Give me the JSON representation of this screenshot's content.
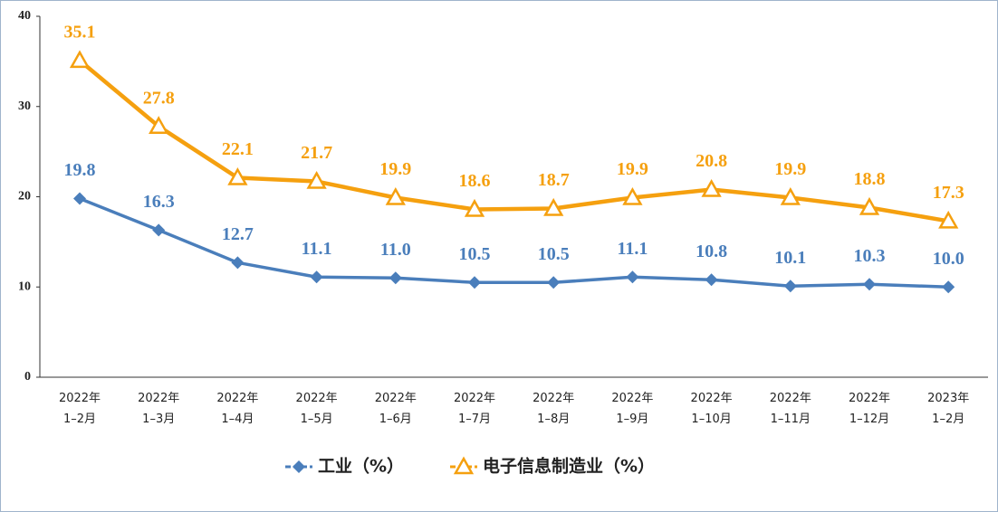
{
  "chart_data": {
    "type": "line",
    "categories": [
      "2022年\n1–2月",
      "2022年\n1–3月",
      "2022年\n1–4月",
      "2022年\n1–5月",
      "2022年\n1–6月",
      "2022年\n1–7月",
      "2022年\n1–8月",
      "2022年\n1–9月",
      "2022年\n1–10月",
      "2022年\n1–11月",
      "2022年\n1–12月",
      "2023年\n1–2月"
    ],
    "series": [
      {
        "name": "工业（%）",
        "color": "#4a7ebb",
        "marker": "diamond",
        "values": [
          19.8,
          16.3,
          12.7,
          11.1,
          11.0,
          10.5,
          10.5,
          11.1,
          10.8,
          10.1,
          10.3,
          10.0
        ],
        "value_labels": [
          "19.8",
          "16.3",
          "12.7",
          "11.1",
          "11.0",
          "10.5",
          "10.5",
          "11.1",
          "10.8",
          "10.1",
          "10.3",
          "10.0"
        ]
      },
      {
        "name": "电子信息制造业（%）",
        "color": "#f5a00f",
        "marker": "triangle",
        "values": [
          35.1,
          27.8,
          22.1,
          21.7,
          19.9,
          18.6,
          18.7,
          19.9,
          20.8,
          19.9,
          18.8,
          17.3
        ],
        "value_labels": [
          "35.1",
          "27.8",
          "22.1",
          "21.7",
          "19.9",
          "18.6",
          "18.7",
          "19.9",
          "20.8",
          "19.9",
          "18.8",
          "17.3"
        ]
      }
    ],
    "ylim": [
      0,
      40
    ],
    "yticks": [
      0,
      10,
      20,
      30,
      40
    ],
    "grid": false,
    "legend": "bottom"
  }
}
